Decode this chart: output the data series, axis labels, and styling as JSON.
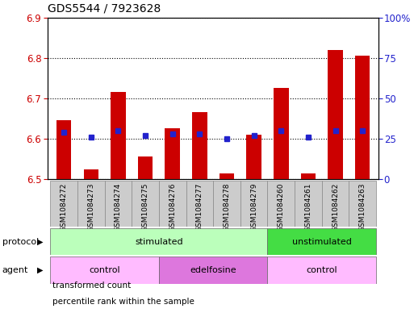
{
  "title": "GDS5544 / 7923628",
  "samples": [
    "GSM1084272",
    "GSM1084273",
    "GSM1084274",
    "GSM1084275",
    "GSM1084276",
    "GSM1084277",
    "GSM1084278",
    "GSM1084279",
    "GSM1084260",
    "GSM1084261",
    "GSM1084262",
    "GSM1084263"
  ],
  "red_values": [
    6.645,
    6.525,
    6.715,
    6.555,
    6.625,
    6.665,
    6.515,
    6.61,
    6.725,
    6.515,
    6.82,
    6.805
  ],
  "blue_pct": [
    29,
    26,
    30,
    27,
    28,
    28,
    25,
    27,
    30,
    26,
    30,
    30
  ],
  "ylim_left": [
    6.5,
    6.9
  ],
  "ylim_right": [
    0,
    100
  ],
  "yticks_left": [
    6.5,
    6.6,
    6.7,
    6.8,
    6.9
  ],
  "yticks_right": [
    0,
    25,
    50,
    75,
    100
  ],
  "ytick_labels_right": [
    "0",
    "25",
    "50",
    "75",
    "100%"
  ],
  "bar_color": "#cc0000",
  "dot_color": "#2222cc",
  "bar_bottom": 6.5,
  "bar_width": 0.55,
  "protocol_groups": [
    {
      "label": "stimulated",
      "start": 0,
      "end": 8,
      "color": "#bbffbb"
    },
    {
      "label": "unstimulated",
      "start": 8,
      "end": 12,
      "color": "#44dd44"
    }
  ],
  "agent_groups": [
    {
      "label": "control",
      "start": 0,
      "end": 4,
      "color": "#ffbbff"
    },
    {
      "label": "edelfosine",
      "start": 4,
      "end": 8,
      "color": "#dd77dd"
    },
    {
      "label": "control",
      "start": 8,
      "end": 12,
      "color": "#ffbbff"
    }
  ],
  "legend_items": [
    {
      "label": "transformed count",
      "color": "#cc0000",
      "marker": "s"
    },
    {
      "label": "percentile rank within the sample",
      "color": "#2222cc",
      "marker": "s"
    }
  ],
  "bg_color": "#ffffff",
  "tick_color_left": "#cc0000",
  "tick_color_right": "#2222cc",
  "xlabel_cell_color": "#cccccc",
  "xlabel_cell_edgecolor": "#888888"
}
